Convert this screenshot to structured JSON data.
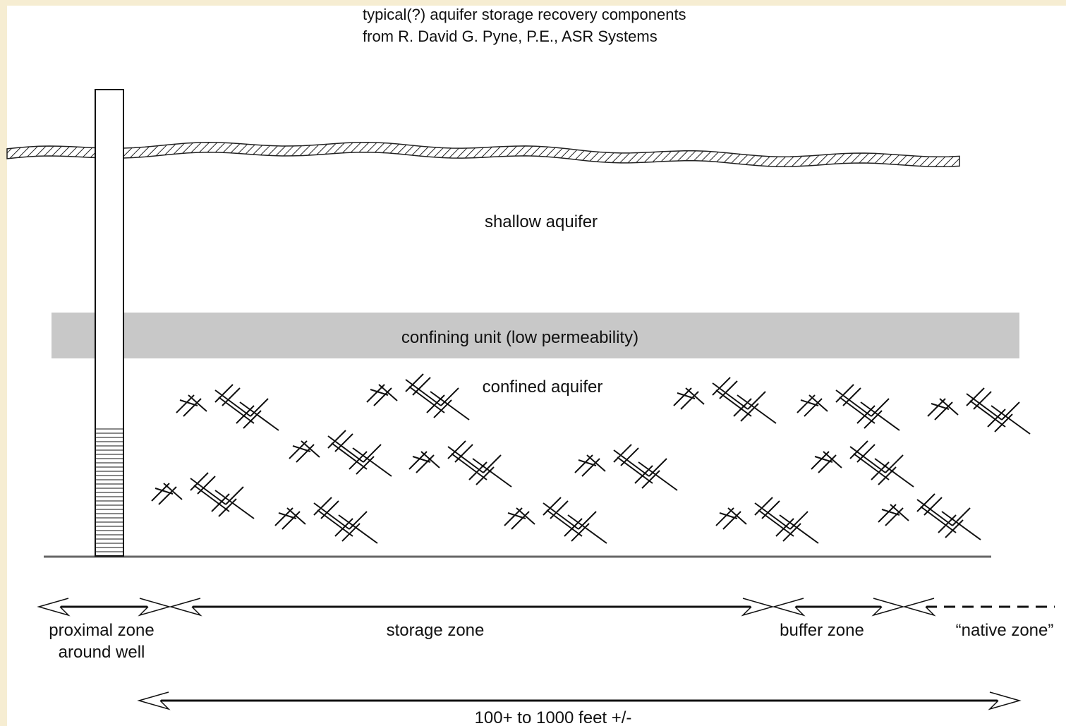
{
  "title": [
    "typical(?) aquifer storage recovery components",
    "from R. David G. Pyne, P.E., ASR Systems"
  ],
  "layers": {
    "shallow": "shallow aquifer",
    "confining": "confining unit (low permeability)",
    "confined": "confined aquifer"
  },
  "zones": {
    "proximal": [
      "proximal zone",
      "around well"
    ],
    "storage": "storage zone",
    "buffer": "buffer zone",
    "native": "“native zone”"
  },
  "scale": "100+ to 1000 feet +/-"
}
